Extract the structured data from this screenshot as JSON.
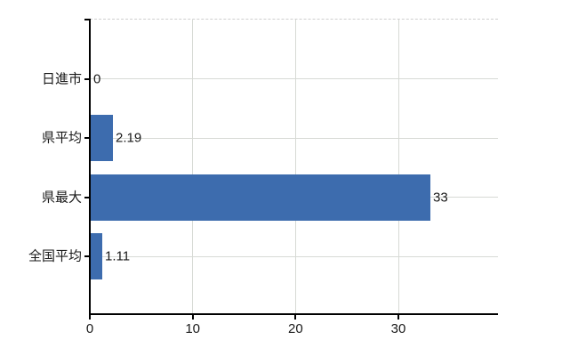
{
  "chart_data": {
    "type": "bar",
    "orientation": "horizontal",
    "title": "",
    "xlabel": "",
    "ylabel": "",
    "categories": [
      "日進市",
      "県平均",
      "県最大",
      "全国平均"
    ],
    "values": [
      0,
      2.19,
      33,
      1.11
    ],
    "value_labels": [
      "0",
      "2.19",
      "33",
      "1.11"
    ],
    "x_ticks": [
      0,
      10,
      20,
      30
    ],
    "x_tick_labels": [
      "0",
      "10",
      "20",
      "30"
    ],
    "xlim": [
      0,
      39.7
    ],
    "grid": true,
    "legend": false,
    "colors": {
      "bar": "#3d6cae",
      "axis": "#000000",
      "grid": "#d7dad5",
      "top_border": "#cfcfcf",
      "text": "#1a1a1a",
      "background": "#ffffff"
    }
  }
}
